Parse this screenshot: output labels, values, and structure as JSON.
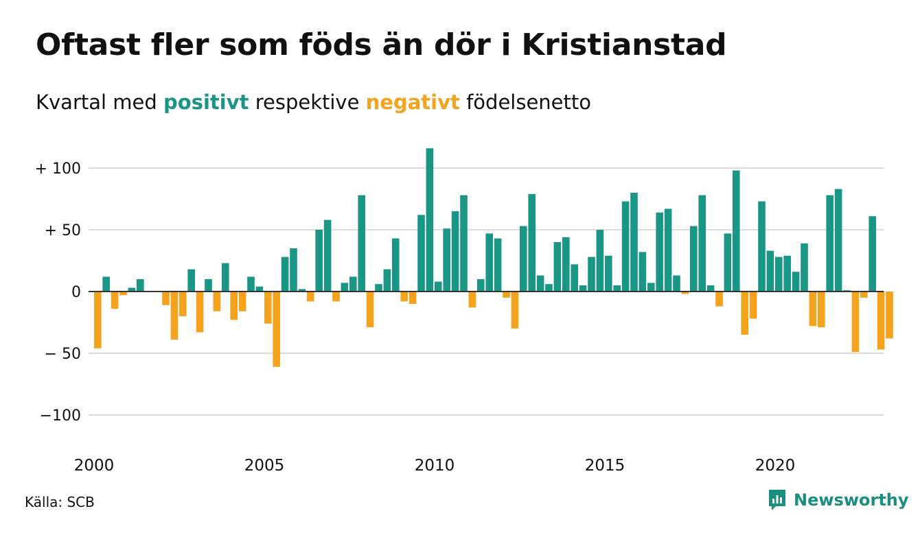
{
  "title": "Oftast fler som föds än dör i Kristianstad",
  "subtitle": {
    "prefix": "Kvartal med ",
    "positive_word": "positivt",
    "middle": " respektive ",
    "negative_word": "negativt",
    "suffix": " födelsenetto"
  },
  "source": "Källa: SCB",
  "brand": {
    "name": "Newsworthy",
    "icon": "newsworthy-logo-icon"
  },
  "colors": {
    "positive": "#1a9687",
    "negative": "#f5a21d",
    "grid": "#dddddd",
    "axis": "#333333",
    "brand": "#1a8f80"
  },
  "chart_data": {
    "type": "bar",
    "title": "Oftast fler som föds än dör i Kristianstad",
    "subtitle": "Kvartal med positivt respektive negativt födelsenetto",
    "xlabel": "",
    "ylabel": "",
    "x_start": "2000 Q1",
    "period": "quarter",
    "ylim": [
      -120,
      120
    ],
    "yticks": [
      {
        "value": 100,
        "label": "+ 100"
      },
      {
        "value": 50,
        "label": "+  50"
      },
      {
        "value": 0,
        "label": "0"
      },
      {
        "value": -50,
        "label": "− 50"
      },
      {
        "value": -100,
        "label": "−100"
      }
    ],
    "xticks": [
      {
        "year": 2000,
        "label": "2000"
      },
      {
        "year": 2005,
        "label": "2005"
      },
      {
        "year": 2010,
        "label": "2010"
      },
      {
        "year": 2015,
        "label": "2015"
      },
      {
        "year": 2020,
        "label": "2020"
      }
    ],
    "grid": true,
    "legend": "none",
    "values": [
      -46,
      12,
      -14,
      -3,
      3,
      10,
      0,
      0,
      -11,
      -39,
      -20,
      18,
      -33,
      10,
      -16,
      23,
      -23,
      -16,
      12,
      4,
      -26,
      -61,
      28,
      35,
      2,
      -8,
      50,
      58,
      -8,
      7,
      12,
      78,
      -29,
      6,
      18,
      43,
      -8,
      -10,
      62,
      116,
      8,
      51,
      65,
      78,
      -13,
      10,
      47,
      43,
      -5,
      -30,
      53,
      79,
      13,
      6,
      40,
      44,
      22,
      5,
      28,
      50,
      29,
      5,
      73,
      80,
      32,
      7,
      64,
      67,
      13,
      -2,
      53,
      78,
      5,
      -12,
      47,
      98,
      -35,
      -22,
      73,
      33,
      28,
      29,
      16,
      39,
      -28,
      -29,
      78,
      83,
      1,
      -49,
      -5,
      61,
      -47,
      -38
    ]
  }
}
